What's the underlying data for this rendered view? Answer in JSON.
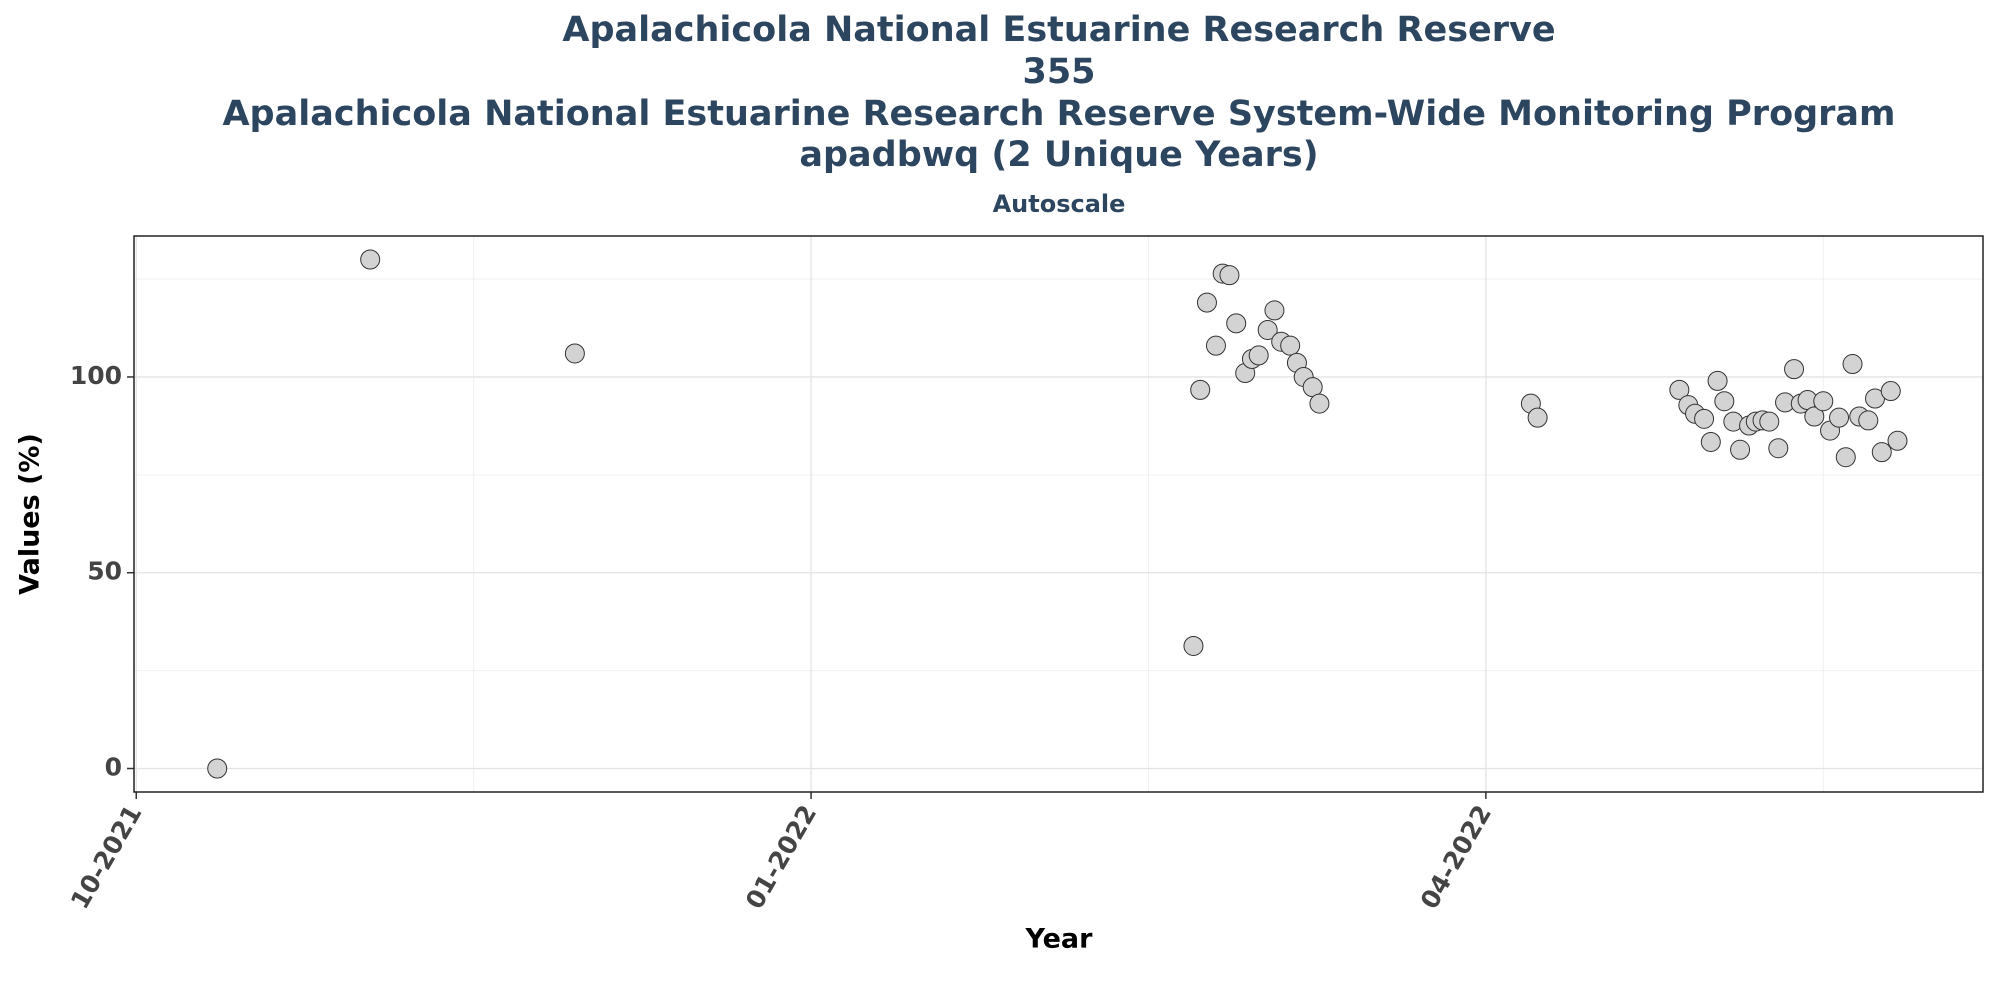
{
  "chart_data": {
    "type": "scatter",
    "title": [
      "Apalachicola National Estuarine Research Reserve",
      "355",
      "Apalachicola National Estuarine Research Reserve System-Wide Monitoring Program",
      "apadbwq (2 Unique Years)"
    ],
    "subtitle": "Autoscale",
    "x_label": "Year",
    "y_label": "Values (%)",
    "x": [
      0.36,
      1.04,
      1.95,
      4.7,
      4.73,
      4.76,
      4.8,
      4.83,
      4.86,
      4.89,
      4.93,
      4.96,
      4.99,
      5.03,
      5.06,
      5.09,
      5.13,
      5.16,
      5.19,
      5.23,
      5.26,
      6.2,
      6.23,
      6.86,
      6.9,
      6.93,
      6.97,
      7.0,
      7.03,
      7.06,
      7.1,
      7.13,
      7.17,
      7.2,
      7.23,
      7.26,
      7.3,
      7.33,
      7.37,
      7.4,
      7.43,
      7.46,
      7.5,
      7.53,
      7.57,
      7.6,
      7.63,
      7.66,
      7.7,
      7.73,
      7.76,
      7.8,
      7.83
    ],
    "values": [
      0,
      130,
      106,
      31.3,
      96.7,
      119,
      108,
      126.4,
      126,
      113.7,
      101,
      104.6,
      105.5,
      112,
      117,
      109,
      108,
      103.6,
      100,
      97.4,
      93.2,
      93.2,
      89.6,
      96.7,
      92.8,
      90.6,
      89.3,
      83.4,
      99,
      93.8,
      88.6,
      81.4,
      87.6,
      88.6,
      88.9,
      88.6,
      81.8,
      93.5,
      102,
      93.2,
      94.1,
      89.9,
      93.8,
      86.3,
      89.6,
      79.5,
      103.3,
      89.9,
      88.9,
      94.5,
      80.8,
      96.4,
      83.7
    ],
    "color": "#d3d3d3",
    "edge_color": "#333333",
    "xlim": [
      -0.01,
      8.21
    ],
    "xticks": [
      {
        "value": 0,
        "label": "10-2021"
      },
      {
        "value": 3,
        "label": "01-2022"
      },
      {
        "value": 6,
        "label": "04-2022"
      }
    ],
    "xminorticks": [
      1.5,
      4.5,
      7.5
    ],
    "ylim": [
      -6,
      136
    ],
    "yticks": [
      0,
      50,
      100
    ],
    "yminorticks": [
      25,
      75,
      125
    ],
    "grid": true
  }
}
